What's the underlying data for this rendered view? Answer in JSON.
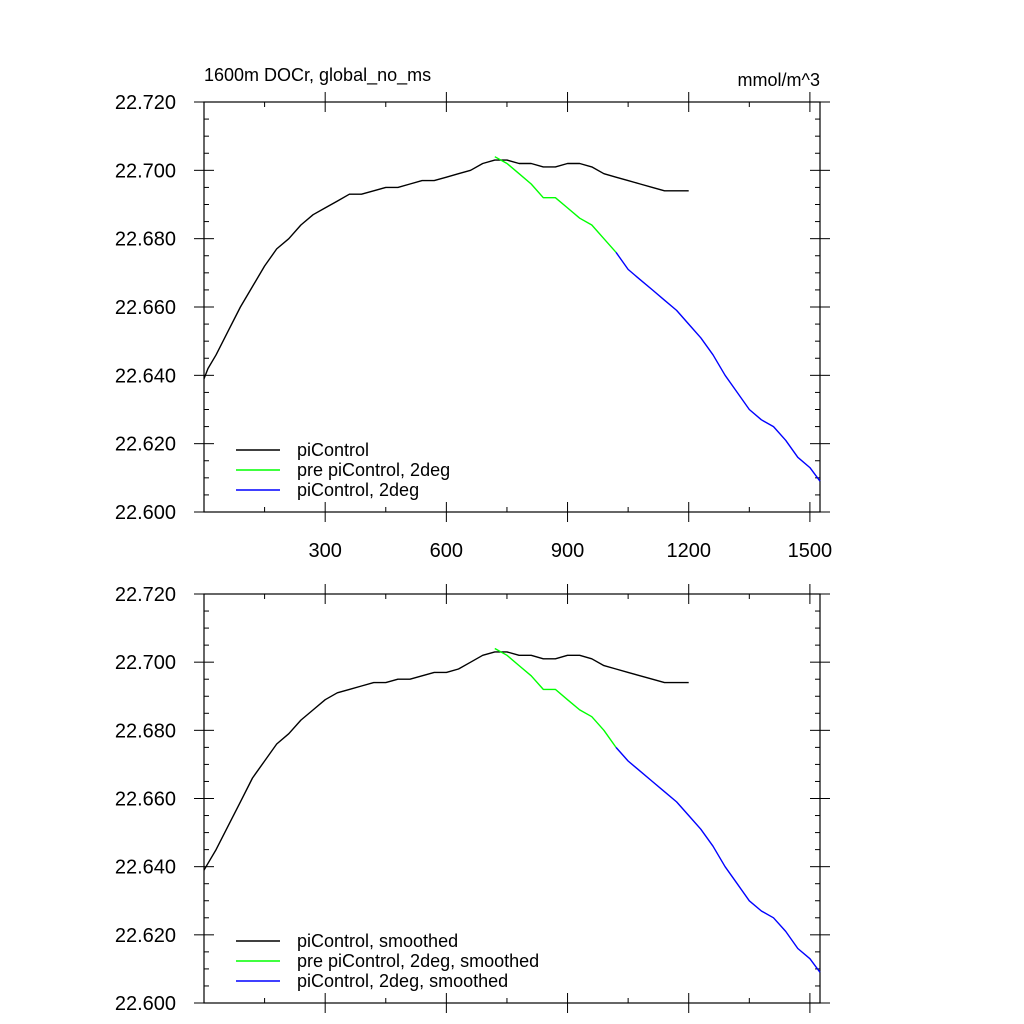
{
  "chart_data": [
    {
      "type": "line",
      "title": "1600m DOCr, global_no_ms",
      "units": "mmol/m^3",
      "xlim": [
        0,
        1525
      ],
      "ylim": [
        22.6,
        22.72
      ],
      "xticks": [
        "300",
        "600",
        "900",
        "1200",
        "1500"
      ],
      "yticks": [
        "22.600",
        "22.620",
        "22.640",
        "22.660",
        "22.680",
        "22.700",
        "22.720"
      ],
      "legend_position": "bottom-left",
      "series": [
        {
          "name": "piControl",
          "color": "#000000",
          "x": [
            0,
            10,
            30,
            60,
            90,
            120,
            150,
            180,
            210,
            240,
            270,
            300,
            330,
            360,
            390,
            420,
            450,
            480,
            510,
            540,
            570,
            600,
            630,
            660,
            690,
            720,
            750,
            780,
            810,
            840,
            870,
            900,
            930,
            960,
            990,
            1020,
            1050,
            1080,
            1110,
            1140,
            1170,
            1200
          ],
          "y": [
            22.639,
            22.642,
            22.646,
            22.653,
            22.66,
            22.666,
            22.672,
            22.677,
            22.68,
            22.684,
            22.687,
            22.689,
            22.691,
            22.693,
            22.693,
            22.694,
            22.695,
            22.695,
            22.696,
            22.697,
            22.697,
            22.698,
            22.699,
            22.7,
            22.702,
            22.703,
            22.703,
            22.702,
            22.702,
            22.701,
            22.701,
            22.702,
            22.702,
            22.701,
            22.699,
            22.698,
            22.697,
            22.696,
            22.695,
            22.694,
            22.694,
            22.694
          ]
        },
        {
          "name": "pre piControl, 2deg",
          "color": "#00ff00",
          "x": [
            720,
            750,
            780,
            810,
            840,
            870,
            900,
            930,
            960,
            990,
            1020
          ],
          "y": [
            22.704,
            22.702,
            22.699,
            22.696,
            22.692,
            22.692,
            22.689,
            22.686,
            22.684,
            22.68,
            22.676
          ]
        },
        {
          "name": "piControl, 2deg",
          "color": "#0000ff",
          "x": [
            1020,
            1050,
            1080,
            1110,
            1140,
            1170,
            1200,
            1230,
            1260,
            1290,
            1320,
            1350,
            1380,
            1410,
            1440,
            1470,
            1500,
            1525
          ],
          "y": [
            22.676,
            22.671,
            22.668,
            22.665,
            22.662,
            22.659,
            22.655,
            22.651,
            22.646,
            22.64,
            22.635,
            22.63,
            22.627,
            22.625,
            22.621,
            22.616,
            22.613,
            22.609
          ]
        }
      ]
    },
    {
      "type": "line",
      "title": "",
      "units": "",
      "xlim": [
        0,
        1525
      ],
      "ylim": [
        22.6,
        22.72
      ],
      "xticks": [],
      "yticks": [
        "22.600",
        "22.620",
        "22.640",
        "22.660",
        "22.680",
        "22.700",
        "22.720"
      ],
      "legend_position": "bottom-left",
      "series": [
        {
          "name": "piControl, smoothed",
          "color": "#000000",
          "x": [
            0,
            10,
            30,
            60,
            90,
            120,
            150,
            180,
            210,
            240,
            270,
            300,
            330,
            360,
            390,
            420,
            450,
            480,
            510,
            540,
            570,
            600,
            630,
            660,
            690,
            720,
            750,
            780,
            810,
            840,
            870,
            900,
            930,
            960,
            990,
            1020,
            1050,
            1080,
            1110,
            1140,
            1170,
            1200
          ],
          "y": [
            22.639,
            22.641,
            22.645,
            22.652,
            22.659,
            22.666,
            22.671,
            22.676,
            22.679,
            22.683,
            22.686,
            22.689,
            22.691,
            22.692,
            22.693,
            22.694,
            22.694,
            22.695,
            22.695,
            22.696,
            22.697,
            22.697,
            22.698,
            22.7,
            22.702,
            22.703,
            22.703,
            22.702,
            22.702,
            22.701,
            22.701,
            22.702,
            22.702,
            22.701,
            22.699,
            22.698,
            22.697,
            22.696,
            22.695,
            22.694,
            22.694,
            22.694
          ]
        },
        {
          "name": "pre piControl, 2deg, smoothed",
          "color": "#00ff00",
          "x": [
            720,
            750,
            780,
            810,
            840,
            870,
            900,
            930,
            960,
            990,
            1020
          ],
          "y": [
            22.704,
            22.702,
            22.699,
            22.696,
            22.692,
            22.692,
            22.689,
            22.686,
            22.684,
            22.68,
            22.675
          ]
        },
        {
          "name": "piControl, 2deg, smoothed",
          "color": "#0000ff",
          "x": [
            1020,
            1050,
            1080,
            1110,
            1140,
            1170,
            1200,
            1230,
            1260,
            1290,
            1320,
            1350,
            1380,
            1410,
            1440,
            1470,
            1500,
            1525
          ],
          "y": [
            22.675,
            22.671,
            22.668,
            22.665,
            22.662,
            22.659,
            22.655,
            22.651,
            22.646,
            22.64,
            22.635,
            22.63,
            22.627,
            22.625,
            22.621,
            22.616,
            22.613,
            22.609
          ]
        }
      ]
    }
  ]
}
